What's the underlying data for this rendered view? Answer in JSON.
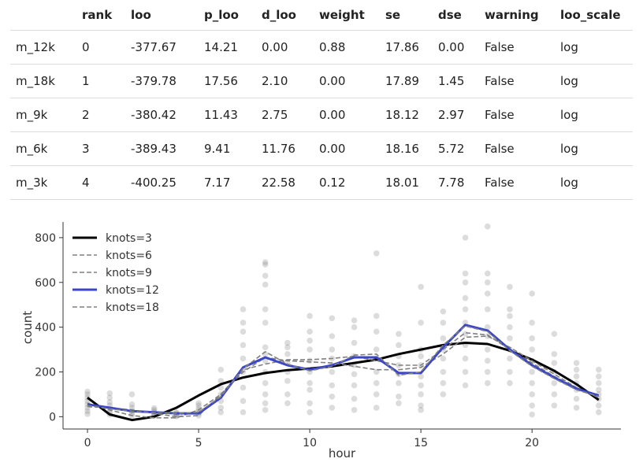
{
  "table": {
    "columns": [
      "",
      "rank",
      "loo",
      "p_loo",
      "d_loo",
      "weight",
      "se",
      "dse",
      "warning",
      "loo_scale"
    ],
    "rows": [
      [
        "m_12k",
        "0",
        "-377.67",
        "14.21",
        "0.00",
        "0.88",
        "17.86",
        "0.00",
        "False",
        "log"
      ],
      [
        "m_18k",
        "1",
        "-379.78",
        "17.56",
        "2.10",
        "0.00",
        "17.89",
        "1.45",
        "False",
        "log"
      ],
      [
        "m_9k",
        "2",
        "-380.42",
        "11.43",
        "2.75",
        "0.00",
        "18.12",
        "2.97",
        "False",
        "log"
      ],
      [
        "m_6k",
        "3",
        "-389.43",
        "9.41",
        "11.76",
        "0.00",
        "18.16",
        "5.72",
        "False",
        "log"
      ],
      [
        "m_3k",
        "4",
        "-400.25",
        "7.17",
        "22.58",
        "0.12",
        "18.01",
        "7.78",
        "False",
        "log"
      ]
    ]
  },
  "chart_data": {
    "type": "line",
    "xlabel": "hour",
    "ylabel": "count",
    "xlim": [
      -1.1,
      24.0
    ],
    "ylim": [
      -55,
      870
    ],
    "xticks": [
      0,
      5,
      10,
      15,
      20
    ],
    "yticks": [
      0,
      200,
      400,
      600,
      800
    ],
    "legend_position": "top-left",
    "scatter": {
      "color": "#808080",
      "points": [
        [
          0,
          12
        ],
        [
          0,
          25
        ],
        [
          0,
          40
        ],
        [
          0,
          55
        ],
        [
          0,
          70
        ],
        [
          0,
          85
        ],
        [
          0,
          100
        ],
        [
          0,
          112
        ],
        [
          1,
          10
        ],
        [
          1,
          20
        ],
        [
          1,
          35
        ],
        [
          1,
          50
        ],
        [
          1,
          65
        ],
        [
          1,
          85
        ],
        [
          1,
          105
        ],
        [
          2,
          5
        ],
        [
          2,
          15
        ],
        [
          2,
          25
        ],
        [
          2,
          40
        ],
        [
          2,
          55
        ],
        [
          2,
          100
        ],
        [
          3,
          3
        ],
        [
          3,
          8
        ],
        [
          3,
          15
        ],
        [
          3,
          22
        ],
        [
          3,
          30
        ],
        [
          3,
          38
        ],
        [
          4,
          2
        ],
        [
          4,
          5
        ],
        [
          4,
          10
        ],
        [
          4,
          15
        ],
        [
          4,
          20
        ],
        [
          5,
          5
        ],
        [
          5,
          15
        ],
        [
          5,
          25
        ],
        [
          5,
          35
        ],
        [
          5,
          50
        ],
        [
          5,
          60
        ],
        [
          6,
          20
        ],
        [
          6,
          40
        ],
        [
          6,
          70
        ],
        [
          6,
          100
        ],
        [
          6,
          130
        ],
        [
          6,
          160
        ],
        [
          6,
          210
        ],
        [
          7,
          20
        ],
        [
          7,
          70
        ],
        [
          7,
          130
        ],
        [
          7,
          200
        ],
        [
          7,
          260
        ],
        [
          7,
          320
        ],
        [
          7,
          380
        ],
        [
          7,
          420
        ],
        [
          7,
          480
        ],
        [
          8,
          30
        ],
        [
          8,
          60
        ],
        [
          8,
          100
        ],
        [
          8,
          150
        ],
        [
          8,
          200
        ],
        [
          8,
          250
        ],
        [
          8,
          280
        ],
        [
          8,
          310
        ],
        [
          8,
          420
        ],
        [
          8,
          480
        ],
        [
          8,
          590
        ],
        [
          8,
          630
        ],
        [
          8,
          680
        ],
        [
          8,
          690
        ],
        [
          9,
          60
        ],
        [
          9,
          100
        ],
        [
          9,
          160
        ],
        [
          9,
          200
        ],
        [
          9,
          240
        ],
        [
          9,
          280
        ],
        [
          9,
          310
        ],
        [
          9,
          330
        ],
        [
          10,
          20
        ],
        [
          10,
          60
        ],
        [
          10,
          120
        ],
        [
          10,
          150
        ],
        [
          10,
          200
        ],
        [
          10,
          250
        ],
        [
          10,
          300
        ],
        [
          10,
          340
        ],
        [
          10,
          380
        ],
        [
          10,
          450
        ],
        [
          11,
          40
        ],
        [
          11,
          90
        ],
        [
          11,
          140
        ],
        [
          11,
          200
        ],
        [
          11,
          230
        ],
        [
          11,
          260
        ],
        [
          11,
          300
        ],
        [
          11,
          360
        ],
        [
          11,
          440
        ],
        [
          12,
          30
        ],
        [
          12,
          80
        ],
        [
          12,
          140
        ],
        [
          12,
          190
        ],
        [
          12,
          230
        ],
        [
          12,
          270
        ],
        [
          12,
          330
        ],
        [
          12,
          400
        ],
        [
          12,
          430
        ],
        [
          13,
          40
        ],
        [
          13,
          100
        ],
        [
          13,
          150
        ],
        [
          13,
          200
        ],
        [
          13,
          260
        ],
        [
          13,
          300
        ],
        [
          13,
          380
        ],
        [
          13,
          450
        ],
        [
          13,
          730
        ],
        [
          14,
          60
        ],
        [
          14,
          90
        ],
        [
          14,
          150
        ],
        [
          14,
          190
        ],
        [
          14,
          230
        ],
        [
          14,
          270
        ],
        [
          14,
          320
        ],
        [
          14,
          370
        ],
        [
          15,
          30
        ],
        [
          15,
          50
        ],
        [
          15,
          100
        ],
        [
          15,
          140
        ],
        [
          15,
          180
        ],
        [
          15,
          230
        ],
        [
          15,
          270
        ],
        [
          15,
          300
        ],
        [
          15,
          420
        ],
        [
          15,
          580
        ],
        [
          16,
          100
        ],
        [
          16,
          150
        ],
        [
          16,
          200
        ],
        [
          16,
          260
        ],
        [
          16,
          300
        ],
        [
          16,
          350
        ],
        [
          16,
          420
        ],
        [
          16,
          470
        ],
        [
          17,
          140
        ],
        [
          17,
          200
        ],
        [
          17,
          260
        ],
        [
          17,
          320
        ],
        [
          17,
          370
        ],
        [
          17,
          420
        ],
        [
          17,
          480
        ],
        [
          17,
          530
        ],
        [
          17,
          600
        ],
        [
          17,
          640
        ],
        [
          17,
          800
        ],
        [
          18,
          150
        ],
        [
          18,
          200
        ],
        [
          18,
          250
        ],
        [
          18,
          300
        ],
        [
          18,
          360
        ],
        [
          18,
          400
        ],
        [
          18,
          480
        ],
        [
          18,
          550
        ],
        [
          18,
          600
        ],
        [
          18,
          640
        ],
        [
          18,
          850
        ],
        [
          19,
          150
        ],
        [
          19,
          200
        ],
        [
          19,
          260
        ],
        [
          19,
          300
        ],
        [
          19,
          350
        ],
        [
          19,
          400
        ],
        [
          19,
          450
        ],
        [
          19,
          480
        ],
        [
          19,
          580
        ],
        [
          20,
          10
        ],
        [
          20,
          50
        ],
        [
          20,
          100
        ],
        [
          20,
          150
        ],
        [
          20,
          200
        ],
        [
          20,
          250
        ],
        [
          20,
          300
        ],
        [
          20,
          350
        ],
        [
          20,
          420
        ],
        [
          20,
          550
        ],
        [
          21,
          50
        ],
        [
          21,
          100
        ],
        [
          21,
          150
        ],
        [
          21,
          200
        ],
        [
          21,
          240
        ],
        [
          21,
          280
        ],
        [
          21,
          370
        ],
        [
          22,
          40
        ],
        [
          22,
          80
        ],
        [
          22,
          120
        ],
        [
          22,
          150
        ],
        [
          22,
          180
        ],
        [
          22,
          210
        ],
        [
          22,
          240
        ],
        [
          23,
          20
        ],
        [
          23,
          50
        ],
        [
          23,
          80
        ],
        [
          23,
          100
        ],
        [
          23,
          120
        ],
        [
          23,
          150
        ],
        [
          23,
          180
        ],
        [
          23,
          210
        ]
      ]
    },
    "series": [
      {
        "name": "knots=3",
        "color": "#000000",
        "style": "solid",
        "width": 3,
        "x": [
          0,
          1,
          2,
          3,
          4,
          5,
          6,
          7,
          8,
          9,
          10,
          11,
          12,
          13,
          14,
          15,
          16,
          17,
          18,
          19,
          20,
          21,
          22,
          23
        ],
        "y": [
          85,
          10,
          -15,
          0,
          40,
          95,
          145,
          175,
          195,
          208,
          215,
          225,
          240,
          255,
          280,
          300,
          320,
          330,
          325,
          295,
          255,
          205,
          145,
          75
        ]
      },
      {
        "name": "knots=6",
        "color": "#808080",
        "style": "dashed",
        "width": 1.6,
        "x": [
          0,
          1,
          2,
          3,
          4,
          5,
          6,
          7,
          8,
          9,
          10,
          11,
          12,
          13,
          14,
          15,
          16,
          17,
          18,
          19,
          20,
          21,
          22,
          23
        ],
        "y": [
          60,
          30,
          5,
          -5,
          -5,
          30,
          100,
          200,
          265,
          250,
          245,
          240,
          225,
          210,
          210,
          220,
          280,
          355,
          360,
          310,
          250,
          190,
          130,
          85
        ]
      },
      {
        "name": "knots=9",
        "color": "#808080",
        "style": "dashed",
        "width": 1.6,
        "x": [
          0,
          1,
          2,
          3,
          4,
          5,
          6,
          7,
          8,
          9,
          10,
          11,
          12,
          13,
          14,
          15,
          16,
          17,
          18,
          19,
          20,
          21,
          22,
          23
        ],
        "y": [
          45,
          40,
          30,
          15,
          0,
          5,
          100,
          210,
          235,
          255,
          255,
          260,
          270,
          250,
          230,
          230,
          300,
          375,
          365,
          300,
          240,
          180,
          130,
          90
        ]
      },
      {
        "name": "knots=12",
        "color": "#3a45c8",
        "style": "solid",
        "width": 3,
        "x": [
          0,
          1,
          2,
          3,
          4,
          5,
          6,
          7,
          8,
          9,
          10,
          11,
          12,
          13,
          14,
          15,
          16,
          17,
          18,
          19,
          20,
          21,
          22,
          23
        ],
        "y": [
          55,
          40,
          25,
          20,
          15,
          15,
          85,
          220,
          265,
          230,
          210,
          230,
          265,
          265,
          195,
          195,
          310,
          410,
          385,
          300,
          230,
          175,
          125,
          95
        ]
      },
      {
        "name": "knots=18",
        "color": "#808080",
        "style": "dashed",
        "width": 1.6,
        "x": [
          0,
          1,
          2,
          3,
          4,
          5,
          6,
          7,
          8,
          9,
          10,
          11,
          12,
          13,
          14,
          15,
          16,
          17,
          18,
          19,
          20,
          21,
          22,
          23
        ],
        "y": [
          50,
          35,
          25,
          18,
          15,
          20,
          90,
          215,
          290,
          235,
          205,
          225,
          275,
          280,
          185,
          200,
          320,
          405,
          380,
          295,
          225,
          170,
          120,
          90
        ]
      }
    ]
  }
}
